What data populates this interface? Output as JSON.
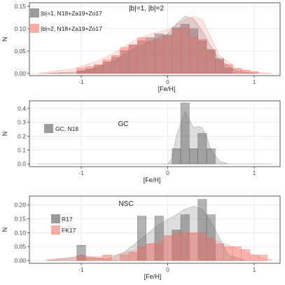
{
  "chart_data": [
    {
      "type": "histogram",
      "annotation": "|b|=1, |b|=2",
      "xlabel": "[Fe/H]",
      "ylabel": "N",
      "xlim": [
        -1.6,
        1.3
      ],
      "ylim": [
        -0.005,
        0.158
      ],
      "xticks": [
        -1,
        0,
        1
      ],
      "yticks": [
        0.0,
        0.05,
        0.1,
        0.15
      ],
      "ytick_labels": [
        "0.00",
        "0.05",
        "0.10",
        "0.15"
      ],
      "legend": {
        "placement": "top-left"
      },
      "series": [
        {
          "name": "|b|=1, N18+Za19+Zo17",
          "color": "#595959",
          "bins": [
            [
              -1.05,
              -0.95,
              0.006
            ],
            [
              -0.95,
              -0.85,
              0.01
            ],
            [
              -0.85,
              -0.75,
              0.018
            ],
            [
              -0.75,
              -0.65,
              0.026
            ],
            [
              -0.65,
              -0.55,
              0.036
            ],
            [
              -0.55,
              -0.45,
              0.051
            ],
            [
              -0.45,
              -0.35,
              0.064
            ],
            [
              -0.35,
              -0.25,
              0.073
            ],
            [
              -0.25,
              -0.15,
              0.08
            ],
            [
              -0.15,
              -0.05,
              0.088
            ],
            [
              -0.05,
              0.05,
              0.086
            ],
            [
              0.05,
              0.15,
              0.102
            ],
            [
              0.15,
              0.25,
              0.11
            ],
            [
              0.25,
              0.35,
              0.1
            ],
            [
              0.35,
              0.45,
              0.073
            ],
            [
              0.45,
              0.55,
              0.053
            ],
            [
              0.55,
              0.65,
              0.033
            ],
            [
              0.65,
              0.75,
              0.012
            ]
          ],
          "density": {
            "x": [
              -1.4,
              -1.0,
              -0.8,
              -0.6,
              -0.4,
              -0.2,
              0.0,
              0.1,
              0.2,
              0.3,
              0.4,
              0.5,
              0.6,
              0.8,
              1.0
            ],
            "y": [
              0.0,
              0.004,
              0.014,
              0.03,
              0.055,
              0.072,
              0.088,
              0.11,
              0.128,
              0.122,
              0.095,
              0.06,
              0.03,
              0.005,
              0.0
            ]
          }
        },
        {
          "name": "|b|=2, N18+Za19+Zo17",
          "color": "#f8766d",
          "bins": [
            [
              -1.05,
              -0.95,
              0.012
            ],
            [
              -0.95,
              -0.85,
              0.015
            ],
            [
              -0.85,
              -0.75,
              0.02
            ],
            [
              -0.75,
              -0.65,
              0.03
            ],
            [
              -0.65,
              -0.55,
              0.04
            ],
            [
              -0.55,
              -0.45,
              0.058
            ],
            [
              -0.45,
              -0.35,
              0.063
            ],
            [
              -0.35,
              -0.25,
              0.08
            ],
            [
              -0.25,
              -0.15,
              0.073
            ],
            [
              -0.15,
              -0.05,
              0.075
            ],
            [
              -0.05,
              0.05,
              0.082
            ],
            [
              0.05,
              0.15,
              0.098
            ],
            [
              0.15,
              0.25,
              0.102
            ],
            [
              0.25,
              0.35,
              0.082
            ],
            [
              0.35,
              0.45,
              0.076
            ],
            [
              0.45,
              0.55,
              0.053
            ],
            [
              0.55,
              0.65,
              0.03
            ],
            [
              0.65,
              0.75,
              0.02
            ],
            [
              0.75,
              0.85,
              0.011
            ],
            [
              0.85,
              0.95,
              0.007
            ],
            [
              0.95,
              1.05,
              0.004
            ]
          ],
          "density": {
            "x": [
              -1.5,
              -1.1,
              -0.8,
              -0.6,
              -0.4,
              -0.2,
              0.0,
              0.2,
              0.3,
              0.4,
              0.5,
              0.6,
              0.8,
              1.0,
              1.2
            ],
            "y": [
              0.0,
              0.01,
              0.028,
              0.048,
              0.072,
              0.088,
              0.098,
              0.12,
              0.128,
              0.12,
              0.08,
              0.04,
              0.012,
              0.003,
              0.0
            ]
          }
        }
      ]
    },
    {
      "type": "histogram",
      "annotation": "GC",
      "xlabel": "[Fe/H]",
      "ylabel": "N",
      "xlim": [
        -1.6,
        1.3
      ],
      "ylim": [
        -0.02,
        0.455
      ],
      "xticks": [
        -1,
        0,
        1
      ],
      "yticks": [
        0.0,
        0.1,
        0.2,
        0.3,
        0.4
      ],
      "ytick_labels": [
        "0.0",
        "0.1",
        "0.2",
        "0.3",
        "0.4"
      ],
      "legend": {
        "placement": "left"
      },
      "series": [
        {
          "name": "GC, N18",
          "color": "#595959",
          "bins": [
            [
              0.05,
              0.15,
              0.11
            ],
            [
              0.15,
              0.25,
              0.44
            ],
            [
              0.25,
              0.35,
              0.11
            ],
            [
              0.35,
              0.45,
              0.22
            ],
            [
              0.45,
              0.55,
              0.11
            ]
          ],
          "density": {
            "x": [
              -1.5,
              0.0,
              0.05,
              0.1,
              0.2,
              0.25,
              0.3,
              0.35,
              0.4,
              0.45,
              0.5,
              0.6,
              0.7,
              1.2
            ],
            "y": [
              0.0,
              0.0,
              0.04,
              0.2,
              0.38,
              0.32,
              0.26,
              0.27,
              0.26,
              0.2,
              0.1,
              0.02,
              0.0,
              0.0
            ]
          }
        }
      ]
    },
    {
      "type": "histogram",
      "annotation": "NSC",
      "xlabel": "[Fe/H]",
      "ylabel": "N",
      "xlim": [
        -1.6,
        1.3
      ],
      "ylim": [
        -0.01,
        0.232
      ],
      "xticks": [
        -1,
        0,
        1
      ],
      "yticks": [
        0.0,
        0.05,
        0.1,
        0.15,
        0.2
      ],
      "ytick_labels": [
        "0.00",
        "0.05",
        "0.10",
        "0.15",
        "0.20"
      ],
      "legend": {
        "placement": "left"
      },
      "series": [
        {
          "name": "R17",
          "color": "#595959",
          "bins": [
            [
              -1.05,
              -0.95,
              0.055
            ],
            [
              -0.35,
              -0.25,
              0.16
            ],
            [
              -0.15,
              -0.05,
              0.16
            ],
            [
              0.05,
              0.15,
              0.11
            ],
            [
              0.15,
              0.25,
              0.165
            ],
            [
              0.35,
              0.45,
              0.22
            ],
            [
              0.45,
              0.55,
              0.165
            ]
          ],
          "density": {
            "x": [
              -1.4,
              -1.1,
              -1.0,
              -0.9,
              -0.7,
              -0.5,
              -0.3,
              -0.1,
              0.1,
              0.2,
              0.3,
              0.4,
              0.5,
              0.6,
              0.7,
              0.9
            ],
            "y": [
              0.0,
              0.01,
              0.02,
              0.012,
              0.004,
              0.03,
              0.08,
              0.13,
              0.165,
              0.185,
              0.195,
              0.185,
              0.14,
              0.08,
              0.02,
              0.0
            ]
          }
        },
        {
          "name": "FK17",
          "color": "#f8766d",
          "bins": [
            [
              -1.05,
              -0.95,
              0.02
            ],
            [
              -0.95,
              -0.85,
              0.01
            ],
            [
              -0.85,
              -0.75,
              0.01
            ],
            [
              -0.75,
              -0.65,
              0.02
            ],
            [
              -0.55,
              -0.45,
              0.02
            ],
            [
              -0.45,
              -0.35,
              0.03
            ],
            [
              -0.35,
              -0.25,
              0.05
            ],
            [
              -0.25,
              -0.15,
              0.06
            ],
            [
              -0.15,
              -0.05,
              0.06
            ],
            [
              -0.05,
              0.05,
              0.09
            ],
            [
              0.05,
              0.15,
              0.1
            ],
            [
              0.15,
              0.25,
              0.1
            ],
            [
              0.25,
              0.35,
              0.1
            ],
            [
              0.35,
              0.45,
              0.1
            ],
            [
              0.45,
              0.55,
              0.08
            ],
            [
              0.55,
              0.65,
              0.06
            ],
            [
              0.65,
              0.75,
              0.05
            ],
            [
              0.75,
              0.85,
              0.05
            ],
            [
              0.85,
              0.95,
              0.04
            ],
            [
              0.95,
              1.05,
              0.02
            ],
            [
              1.05,
              1.15,
              0.02
            ]
          ],
          "density": {
            "x": [
              -1.4,
              -1.1,
              -0.8,
              -0.6,
              -0.4,
              -0.2,
              0.0,
              0.2,
              0.35,
              0.5,
              0.7,
              0.9,
              1.1,
              1.2
            ],
            "y": [
              0.003,
              0.012,
              0.015,
              0.02,
              0.035,
              0.06,
              0.085,
              0.095,
              0.098,
              0.08,
              0.055,
              0.03,
              0.01,
              0.003
            ]
          }
        }
      ]
    }
  ]
}
